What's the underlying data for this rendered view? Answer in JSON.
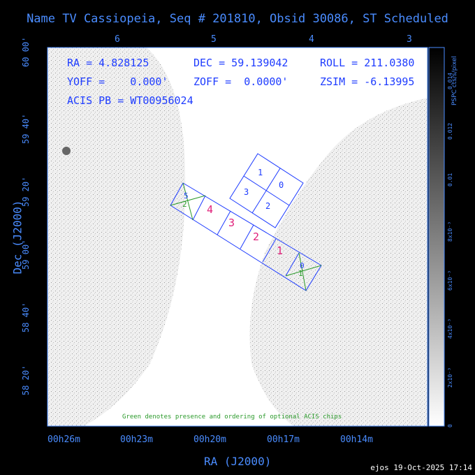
{
  "title": "Name TV Cassiopeia, Seq # 201810, Obsid 30086, ST Scheduled",
  "axes": {
    "top_ticks": [
      "6",
      "5",
      "4",
      "3"
    ],
    "bottom_ticks": [
      "00h26m",
      "00h23m",
      "00h20m",
      "00h17m",
      "00h14m"
    ],
    "left_ticks": [
      "60 00'",
      "59 40'",
      "59 20'",
      "59 00'",
      "58 40'",
      "58 20'"
    ],
    "xlabel": "RA (J2000)",
    "ylabel": "Dec (J2000)"
  },
  "info": {
    "ra": "RA = 4.828125",
    "dec": "DEC = 59.139042",
    "roll": "ROLL = 211.0380",
    "yoff": "YOFF =    0.000'",
    "zoff": "ZOFF =  0.0000'",
    "zsim": "ZSIM = -6.13995",
    "acis": "ACIS PB = WT00956024"
  },
  "chips": {
    "i_array": [
      "1",
      "0",
      "3",
      "2"
    ],
    "s_array_magenta": [
      "4",
      "3",
      "2",
      "1"
    ],
    "s_array_optional": [
      "5",
      "2",
      "0",
      "1"
    ]
  },
  "note": "Green denotes presence and ordering of optional ACIS chips",
  "colorbar": {
    "title": "PSPC cts/s/pixel",
    "ticks": [
      "0",
      "2x10⁻³",
      "4x10⁻³",
      "6x10⁻³",
      "8x10⁻³",
      "0.01",
      "0.012",
      "0.014"
    ]
  },
  "stamp": "ejos 19-Oct-2025 17:14",
  "colors": {
    "axis": "#4a8cff",
    "chip": "#1e3cff",
    "magenta": "#e0207a",
    "green": "#2a9a2a"
  }
}
